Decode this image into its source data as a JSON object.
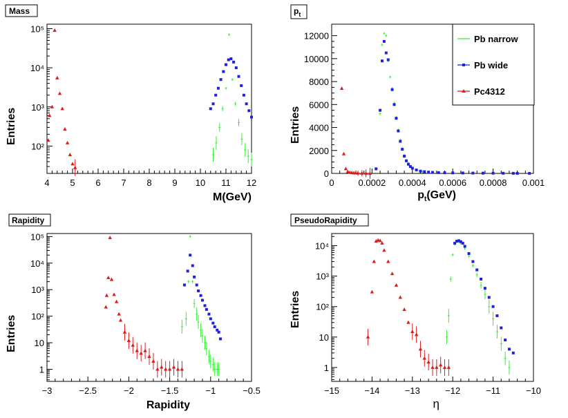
{
  "colors": {
    "pb_narrow": "#33ee33",
    "pb_wide": "#1f1fe0",
    "pc4312": "#e01a1a",
    "frame": "#000000"
  },
  "chart_data": [
    {
      "id": "mass",
      "type": "scatter",
      "title": "Mass",
      "xlabel": "M(GeV)",
      "ylabel": "Entries",
      "xlim": [
        4,
        12
      ],
      "ylog": true,
      "ylim": [
        20,
        130000
      ],
      "xticks": [
        4,
        5,
        6,
        7,
        8,
        9,
        10,
        11,
        12
      ],
      "xtick_labels": [
        "4",
        "5",
        "6",
        "7",
        "8",
        "9",
        "10",
        "11",
        "12"
      ],
      "yticks": [
        100,
        1000,
        10000,
        100000
      ],
      "ytick_labels": [
        "10²",
        "10³",
        "10⁴",
        "10⁵"
      ],
      "series": [
        {
          "name": "Pb narrow",
          "x": [
            10.5,
            10.62,
            10.75,
            10.87,
            11.0,
            11.12,
            11.25,
            11.37,
            11.5,
            11.62,
            11.75,
            11.87,
            12.0
          ],
          "y": [
            60,
            120,
            300,
            900,
            3000,
            70000,
            5000,
            1200,
            400,
            150,
            80,
            55,
            45
          ]
        },
        {
          "name": "Pb wide",
          "x": [
            10.4,
            10.5,
            10.6,
            10.7,
            10.8,
            10.9,
            11.0,
            11.1,
            11.2,
            11.3,
            11.4,
            11.5,
            11.6,
            11.7,
            11.8,
            11.9,
            12.0
          ],
          "y": [
            900,
            1200,
            2000,
            3000,
            5000,
            8000,
            12000,
            16000,
            17000,
            14000,
            10000,
            6000,
            3500,
            2000,
            1200,
            800,
            550
          ]
        },
        {
          "name": "Pc4312",
          "x": [
            4.05,
            4.1,
            4.2,
            4.3,
            4.4,
            4.5,
            4.6,
            4.7,
            4.8,
            4.9,
            5.0,
            5.1
          ],
          "y": [
            140,
            600,
            1000,
            90000,
            5500,
            2200,
            900,
            270,
            120,
            60,
            35,
            28
          ]
        }
      ]
    },
    {
      "id": "pt",
      "type": "scatter",
      "title": "p_t",
      "xlabel": "p_t(GeV)",
      "ylabel": "Entries",
      "xlim": [
        0,
        0.001
      ],
      "ylog": false,
      "ylim": [
        0,
        13000
      ],
      "xticks": [
        0,
        0.0002,
        0.0004,
        0.0006,
        0.0008,
        0.001
      ],
      "xtick_labels": [
        "0",
        "0.0002",
        "0.0004",
        "0.0006",
        "0.0008",
        "0.001"
      ],
      "yticks": [
        0,
        2000,
        4000,
        6000,
        8000,
        10000,
        12000
      ],
      "ytick_labels": [
        "0",
        "2000",
        "4000",
        "6000",
        "8000",
        "10000",
        "12000"
      ],
      "legend": {
        "position": "top-right",
        "entries": [
          "Pb narrow",
          "Pb wide",
          "Pc4312"
        ]
      },
      "series": [
        {
          "name": "Pb narrow",
          "x": [
            0.00024,
            0.00025,
            0.00026,
            0.00027,
            0.00028,
            0.00029,
            0.0003,
            0.00031,
            0.00032,
            0.00033,
            0.00034,
            0.00035,
            0.00036,
            0.00038,
            0.0004,
            0.00042,
            0.00045,
            0.0005
          ],
          "y": [
            5200,
            11200,
            12200,
            12000,
            9800,
            8400,
            7400,
            6100,
            4900,
            3800,
            2900,
            2200,
            1600,
            900,
            500,
            300,
            150,
            60
          ]
        },
        {
          "name": "Pb wide",
          "x": [
            0.00022,
            0.00024,
            0.00025,
            0.00026,
            0.00027,
            0.00028,
            0.0003,
            0.00031,
            0.00032,
            0.00033,
            0.00034,
            0.00035,
            0.00036,
            0.00037,
            0.00038,
            0.00039,
            0.0004,
            0.00042,
            0.00044,
            0.00046,
            0.00048,
            0.0005,
            0.00053,
            0.00056,
            0.0006,
            0.00065,
            0.0007,
            0.00075,
            0.0008,
            0.00085,
            0.0009,
            0.00092,
            0.00098
          ],
          "y": [
            400,
            5500,
            9800,
            11500,
            10500,
            9900,
            7300,
            6000,
            4800,
            3700,
            2800,
            2100,
            1500,
            1100,
            800,
            600,
            450,
            300,
            200,
            150,
            110,
            90,
            70,
            55,
            45,
            35,
            28,
            22,
            18,
            14,
            10,
            8,
            5
          ]
        },
        {
          "name": "Pc4312",
          "x": [
            5e-05,
            6e-05,
            7e-05,
            8e-05,
            9e-05,
            0.0001,
            0.00011,
            0.00012,
            0.00013,
            0.00015,
            0.00017,
            0.00019
          ],
          "y": [
            7400,
            1700,
            400,
            150,
            80,
            60,
            40,
            30,
            25,
            15,
            10,
            5
          ]
        }
      ]
    },
    {
      "id": "rapidity",
      "type": "scatter",
      "title": "Rapidity",
      "xlabel": "Rapidity",
      "ylabel": "Entries",
      "xlim": [
        -3,
        -0.5
      ],
      "ylog": true,
      "ylim": [
        0.35,
        130000
      ],
      "xticks": [
        -3,
        -2.5,
        -2,
        -1.5,
        -1,
        -0.5
      ],
      "xtick_labels": [
        "−3",
        "−2.5",
        "−2",
        "−1.5",
        "−1",
        "−0.5"
      ],
      "yticks": [
        1,
        10,
        100,
        1000,
        10000,
        100000
      ],
      "ytick_labels": [
        "1",
        "10",
        "10²",
        "10³",
        "10⁴",
        "10⁵"
      ],
      "series": [
        {
          "name": "Pb narrow",
          "x": [
            -1.35,
            -1.3,
            -1.27,
            -1.25,
            -1.22,
            -1.2,
            -1.17,
            -1.15,
            -1.12,
            -1.1,
            -1.07,
            -1.05,
            -1.02,
            -1.0,
            -0.97,
            -0.95,
            -0.92,
            -0.9
          ],
          "y": [
            40,
            80,
            2000,
            100000,
            2000,
            300,
            120,
            60,
            30,
            18,
            10,
            6,
            3,
            2,
            1.5,
            1,
            1,
            1
          ]
        },
        {
          "name": "Pb wide",
          "x": [
            -1.32,
            -1.28,
            -1.25,
            -1.22,
            -1.2,
            -1.17,
            -1.15,
            -1.12,
            -1.1,
            -1.07,
            -1.05,
            -1.02,
            -1.0,
            -0.97,
            -0.95,
            -0.92,
            -0.9,
            -0.88
          ],
          "y": [
            1500,
            5000,
            20000,
            8000,
            3000,
            1500,
            900,
            600,
            400,
            250,
            180,
            120,
            80,
            55,
            40,
            30,
            25,
            14
          ]
        },
        {
          "name": "Pc4312",
          "x": [
            -2.28,
            -2.27,
            -2.25,
            -2.23,
            -2.21,
            -2.18,
            -2.15,
            -2.12,
            -2.1,
            -2.05,
            -2.0,
            -1.95,
            -1.9,
            -1.85,
            -1.8,
            -1.75,
            -1.7,
            -1.65,
            -1.6,
            -1.55,
            -1.5,
            -1.45,
            -1.4,
            -1.35
          ],
          "y": [
            220,
            600,
            2800,
            90000,
            2400,
            650,
            350,
            120,
            70,
            25,
            12,
            8,
            5,
            4,
            5,
            3,
            2,
            1,
            1.2,
            1,
            1,
            1.2,
            1,
            1
          ]
        }
      ]
    },
    {
      "id": "pseudorapidity",
      "type": "scatter",
      "title": "PseudoRapidity",
      "xlabel": "η",
      "ylabel": "Entries",
      "xlim": [
        -15,
        -10
      ],
      "ylog": true,
      "ylim": [
        0.35,
        25000
      ],
      "xticks": [
        -15,
        -14,
        -13,
        -12,
        -11,
        -10
      ],
      "xtick_labels": [
        "−15",
        "−14",
        "−13",
        "−12",
        "−11",
        "−10"
      ],
      "yticks": [
        1,
        10,
        100,
        1000,
        10000
      ],
      "ytick_labels": [
        "1",
        "10",
        "10²",
        "10³",
        "10⁴"
      ],
      "series": [
        {
          "name": "Pb narrow",
          "x": [
            -12.15,
            -12.1,
            -12.05,
            -12.0,
            -11.95,
            -11.9,
            -11.85,
            -11.8,
            -11.7,
            -11.6,
            -11.5,
            -11.4,
            -11.3,
            -11.2,
            -11.1,
            -11.0,
            -10.9,
            -10.8,
            -10.7,
            -10.6
          ],
          "y": [
            10,
            50,
            800,
            5000,
            11000,
            14000,
            13500,
            12000,
            8000,
            4500,
            2200,
            1100,
            500,
            250,
            100,
            40,
            15,
            6,
            2,
            1
          ]
        },
        {
          "name": "Pb wide",
          "x": [
            -11.95,
            -11.9,
            -11.85,
            -11.8,
            -11.75,
            -11.7,
            -11.6,
            -11.5,
            -11.4,
            -11.3,
            -11.2,
            -11.1,
            -11.0,
            -10.9,
            -10.8,
            -10.7,
            -10.6,
            -10.5
          ],
          "y": [
            12000,
            14000,
            14500,
            13500,
            12000,
            9500,
            5500,
            3000,
            1600,
            800,
            400,
            200,
            100,
            50,
            20,
            8,
            4,
            3
          ]
        },
        {
          "name": "Pc4312",
          "x": [
            -14.1,
            -14.0,
            -13.95,
            -13.9,
            -13.85,
            -13.8,
            -13.75,
            -13.7,
            -13.6,
            -13.5,
            -13.4,
            -13.3,
            -13.2,
            -13.1,
            -13.0,
            -12.9,
            -12.8,
            -12.7,
            -12.6,
            -12.5,
            -12.4,
            -12.3,
            -12.2,
            -12.1
          ],
          "y": [
            10,
            300,
            3000,
            14000,
            15000,
            14500,
            12000,
            7000,
            3000,
            1200,
            500,
            200,
            80,
            30,
            15,
            12,
            4,
            2,
            1.5,
            1,
            1,
            1.2,
            1,
            1
          ]
        }
      ]
    }
  ]
}
